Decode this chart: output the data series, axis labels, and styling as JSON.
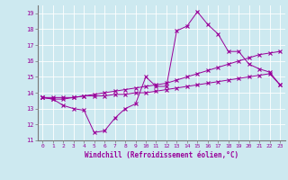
{
  "xlabel": "Windchill (Refroidissement éolien,°C)",
  "background_color": "#cde9f0",
  "grid_color": "#ffffff",
  "line_color": "#990099",
  "marker": "x",
  "xlim": [
    -0.5,
    23.5
  ],
  "ylim": [
    11,
    19.5
  ],
  "xticks": [
    0,
    1,
    2,
    3,
    4,
    5,
    6,
    7,
    8,
    9,
    10,
    11,
    12,
    13,
    14,
    15,
    16,
    17,
    18,
    19,
    20,
    21,
    22,
    23
  ],
  "yticks": [
    11,
    12,
    13,
    14,
    15,
    16,
    17,
    18,
    19
  ],
  "series": [
    [
      13.7,
      13.6,
      13.2,
      13.0,
      12.9,
      11.5,
      11.6,
      12.4,
      13.0,
      13.3,
      15.0,
      14.4,
      14.4,
      17.9,
      18.2,
      19.1,
      18.3,
      17.7,
      16.6,
      16.6,
      15.8,
      15.5,
      15.3,
      14.5
    ],
    [
      13.7,
      13.6,
      13.6,
      13.7,
      13.8,
      13.9,
      14.0,
      14.1,
      14.2,
      14.3,
      14.4,
      14.5,
      14.6,
      14.8,
      15.0,
      15.2,
      15.4,
      15.6,
      15.8,
      16.0,
      16.2,
      16.4,
      16.5,
      16.6
    ],
    [
      13.7,
      13.7,
      13.7,
      13.7,
      13.8,
      13.8,
      13.8,
      13.9,
      13.9,
      14.0,
      14.0,
      14.1,
      14.2,
      14.3,
      14.4,
      14.5,
      14.6,
      14.7,
      14.8,
      14.9,
      15.0,
      15.1,
      15.2,
      14.5
    ]
  ]
}
